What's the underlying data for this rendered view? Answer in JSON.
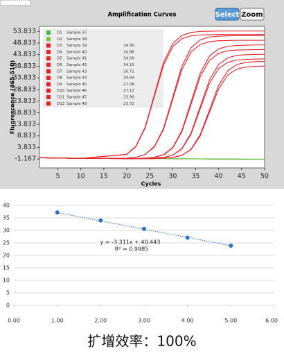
{
  "toolbar": {
    "buttons": [
      "Select",
      "Zoom"
    ]
  },
  "chart_data": [
    {
      "type": "line",
      "title": "Amplification Curves",
      "x_label": "Cycles",
      "y_label": "Fluorescence (465-510)",
      "xlim": [
        1,
        50
      ],
      "ylim": [
        -5,
        56
      ],
      "xticks": [
        5,
        10,
        15,
        20,
        25,
        30,
        35,
        40,
        45,
        50
      ],
      "yticks": [
        53.833,
        48.833,
        43.833,
        38.833,
        33.833,
        28.833,
        23.833,
        18.833,
        13.833,
        8.833,
        3.833,
        -1.167
      ],
      "x": [
        1,
        10,
        20,
        22,
        24,
        26,
        28,
        30,
        32,
        34,
        36,
        38,
        40,
        42,
        44,
        46,
        48,
        50
      ],
      "series": [
        {
          "well": "D1",
          "name": "Sample 37",
          "color": "#4db33d",
          "values": [
            -0.6,
            -0.9,
            -1.0,
            -1.0,
            -1.0,
            -1.0,
            -1.0,
            -1.1,
            -1.1,
            -1.1,
            -1.1,
            -1.2,
            -1.2,
            -1.2,
            -1.2,
            -1.3,
            -1.3,
            -1.3
          ]
        },
        {
          "well": "D2",
          "name": "Sample 38",
          "color": "#7ac143",
          "values": [
            -0.5,
            -0.8,
            -0.9,
            -0.9,
            -0.9,
            -1.0,
            -1.0,
            -1.0,
            -1.0,
            -1.0,
            -1.1,
            -1.1,
            -1.1,
            -1.1,
            -1.1,
            -1.2,
            -1.2,
            -1.2
          ]
        },
        {
          "well": "D3",
          "name": "Sample 39",
          "ct": "34.90",
          "color": "#e8202a",
          "values": [
            -0.6,
            -0.9,
            -1.0,
            -1.0,
            -1.0,
            -1.0,
            -0.8,
            -0.5,
            0.4,
            3.1,
            9.4,
            20.0,
            30.6,
            36.9,
            39.6,
            40.5,
            40.8,
            40.9
          ]
        },
        {
          "well": "D4",
          "name": "Sample 40",
          "ct": "34.88",
          "color": "#e8202a",
          "values": [
            -0.6,
            -0.9,
            -1.0,
            -1.0,
            -1.0,
            -1.0,
            -0.8,
            -0.5,
            0.4,
            2.9,
            8.9,
            19.0,
            29.1,
            35.1,
            37.6,
            38.5,
            38.8,
            38.9
          ]
        },
        {
          "well": "D5",
          "name": "Sample 41",
          "ct": "34.00",
          "color": "#e8202a",
          "values": [
            -0.6,
            -0.9,
            -1.0,
            -1.0,
            -1.0,
            -0.8,
            -0.5,
            0.5,
            3.4,
            10.1,
            21.5,
            32.9,
            39.6,
            42.5,
            43.5,
            43.8,
            43.9,
            44.0
          ]
        },
        {
          "well": "D6",
          "name": "Sample 42",
          "ct": "34.10",
          "color": "#e8202a",
          "values": [
            -0.6,
            -0.9,
            -1.0,
            -1.0,
            -1.0,
            -0.8,
            -0.5,
            0.5,
            3.2,
            9.6,
            20.5,
            31.4,
            37.8,
            40.5,
            41.5,
            41.8,
            41.9,
            42.0
          ]
        },
        {
          "well": "D7",
          "name": "Sample 43",
          "ct": "30.71",
          "color": "#e8202a",
          "values": [
            -0.6,
            -0.9,
            -1.0,
            -1.0,
            -0.8,
            -0.4,
            0.7,
            3.8,
            11.1,
            23.5,
            35.9,
            43.2,
            46.3,
            47.4,
            47.8,
            47.9,
            48.0,
            48.0
          ]
        },
        {
          "well": "D8",
          "name": "Sample 44",
          "ct": "30.69",
          "color": "#e8202a",
          "values": [
            -0.6,
            -0.9,
            -1.0,
            -1.0,
            -0.8,
            -0.5,
            0.6,
            3.6,
            10.6,
            22.5,
            34.4,
            41.4,
            44.4,
            45.5,
            45.8,
            45.9,
            46.0,
            46.0
          ]
        },
        {
          "well": "D9",
          "name": "Sample 45",
          "ct": "27.08",
          "color": "#e8202a",
          "values": [
            -0.6,
            -0.9,
            -0.8,
            -0.4,
            0.8,
            4.2,
            12.1,
            25.5,
            38.9,
            46.8,
            50.2,
            51.4,
            51.8,
            51.9,
            52.0,
            52.0,
            52.0,
            52.0
          ]
        },
        {
          "well": "D10",
          "name": "Sample 46",
          "ct": "27.12",
          "color": "#e8202a",
          "values": [
            -0.6,
            -0.9,
            -0.8,
            -0.4,
            0.8,
            4.0,
            11.6,
            24.5,
            37.4,
            45.0,
            48.2,
            49.4,
            49.8,
            49.9,
            50.0,
            50.0,
            50.0,
            50.0
          ]
        },
        {
          "well": "D11",
          "name": "Sample 47",
          "ct": "23.90",
          "color": "#e8202a",
          "values": [
            -0.6,
            -0.9,
            0.8,
            4.2,
            12.2,
            25.8,
            39.3,
            47.3,
            50.7,
            51.9,
            52.3,
            52.4,
            52.5,
            52.5,
            52.5,
            52.5,
            52.5,
            52.5
          ]
        },
        {
          "well": "D12",
          "name": "Sample 48",
          "ct": "23.72",
          "color": "#e8202a",
          "values": [
            -0.6,
            -0.9,
            0.9,
            4.4,
            12.6,
            26.5,
            40.4,
            48.6,
            52.1,
            53.4,
            53.8,
            53.9,
            54.0,
            54.0,
            54.0,
            54.0,
            54.0,
            54.0
          ]
        }
      ]
    },
    {
      "type": "scatter",
      "color": "#2e6fc6",
      "grid": true,
      "x": [
        1,
        2,
        3,
        4,
        5
      ],
      "values": [
        37.2,
        34.0,
        30.6,
        27.1,
        23.9
      ],
      "xlim": [
        0,
        6
      ],
      "ylim": [
        0,
        40
      ],
      "xticks": [
        {
          "value": 0,
          "label": "0.00"
        },
        {
          "value": 1,
          "label": "1.00"
        },
        {
          "value": 2,
          "label": "2.00"
        },
        {
          "value": 3,
          "label": "3.00"
        },
        {
          "value": 4,
          "label": "4.00"
        },
        {
          "value": 5,
          "label": "5.00"
        },
        {
          "value": 6,
          "label": "6.00"
        }
      ],
      "yticks": [
        0,
        5,
        10,
        15,
        20,
        25,
        30,
        35,
        40
      ],
      "trendline": {
        "slope": -3.311,
        "intercept": 40.443,
        "equation": "y = -3.311x + 40.443",
        "r2": "R² = 0.9985"
      }
    }
  ],
  "caption": "扩增效率：100%"
}
